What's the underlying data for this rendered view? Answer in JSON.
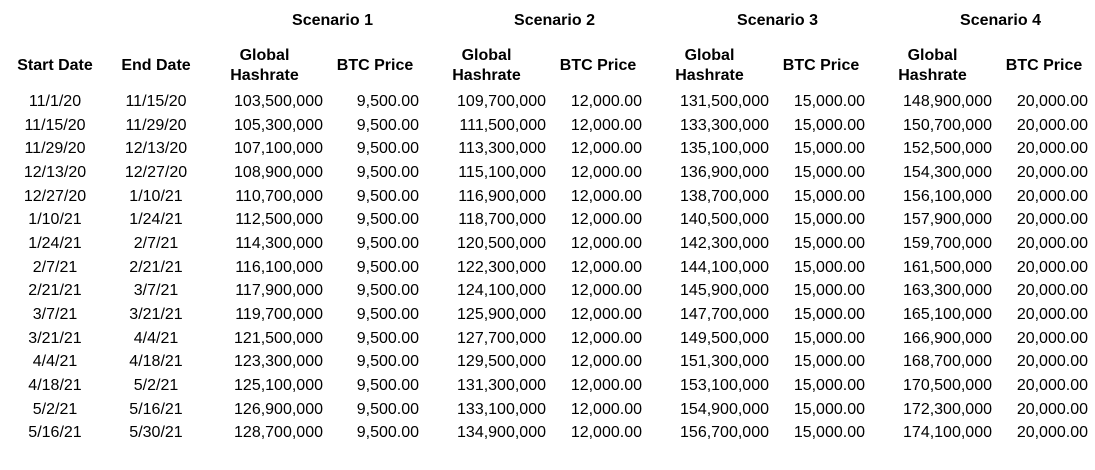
{
  "scenarios": [
    "Scenario 1",
    "Scenario 2",
    "Scenario 3",
    "Scenario 4"
  ],
  "columns": {
    "start_date": "Start Date",
    "end_date": "End Date",
    "hashrate_line1": "Global",
    "hashrate_line2": "Hashrate",
    "btc_price": "BTC Price"
  },
  "rows": [
    [
      "11/1/20",
      "11/15/20",
      "103,500,000",
      "9,500.00",
      "109,700,000",
      "12,000.00",
      "131,500,000",
      "15,000.00",
      "148,900,000",
      "20,000.00"
    ],
    [
      "11/15/20",
      "11/29/20",
      "105,300,000",
      "9,500.00",
      "111,500,000",
      "12,000.00",
      "133,300,000",
      "15,000.00",
      "150,700,000",
      "20,000.00"
    ],
    [
      "11/29/20",
      "12/13/20",
      "107,100,000",
      "9,500.00",
      "113,300,000",
      "12,000.00",
      "135,100,000",
      "15,000.00",
      "152,500,000",
      "20,000.00"
    ],
    [
      "12/13/20",
      "12/27/20",
      "108,900,000",
      "9,500.00",
      "115,100,000",
      "12,000.00",
      "136,900,000",
      "15,000.00",
      "154,300,000",
      "20,000.00"
    ],
    [
      "12/27/20",
      "1/10/21",
      "110,700,000",
      "9,500.00",
      "116,900,000",
      "12,000.00",
      "138,700,000",
      "15,000.00",
      "156,100,000",
      "20,000.00"
    ],
    [
      "1/10/21",
      "1/24/21",
      "112,500,000",
      "9,500.00",
      "118,700,000",
      "12,000.00",
      "140,500,000",
      "15,000.00",
      "157,900,000",
      "20,000.00"
    ],
    [
      "1/24/21",
      "2/7/21",
      "114,300,000",
      "9,500.00",
      "120,500,000",
      "12,000.00",
      "142,300,000",
      "15,000.00",
      "159,700,000",
      "20,000.00"
    ],
    [
      "2/7/21",
      "2/21/21",
      "116,100,000",
      "9,500.00",
      "122,300,000",
      "12,000.00",
      "144,100,000",
      "15,000.00",
      "161,500,000",
      "20,000.00"
    ],
    [
      "2/21/21",
      "3/7/21",
      "117,900,000",
      "9,500.00",
      "124,100,000",
      "12,000.00",
      "145,900,000",
      "15,000.00",
      "163,300,000",
      "20,000.00"
    ],
    [
      "3/7/21",
      "3/21/21",
      "119,700,000",
      "9,500.00",
      "125,900,000",
      "12,000.00",
      "147,700,000",
      "15,000.00",
      "165,100,000",
      "20,000.00"
    ],
    [
      "3/21/21",
      "4/4/21",
      "121,500,000",
      "9,500.00",
      "127,700,000",
      "12,000.00",
      "149,500,000",
      "15,000.00",
      "166,900,000",
      "20,000.00"
    ],
    [
      "4/4/21",
      "4/18/21",
      "123,300,000",
      "9,500.00",
      "129,500,000",
      "12,000.00",
      "151,300,000",
      "15,000.00",
      "168,700,000",
      "20,000.00"
    ],
    [
      "4/18/21",
      "5/2/21",
      "125,100,000",
      "9,500.00",
      "131,300,000",
      "12,000.00",
      "153,100,000",
      "15,000.00",
      "170,500,000",
      "20,000.00"
    ],
    [
      "5/2/21",
      "5/16/21",
      "126,900,000",
      "9,500.00",
      "133,100,000",
      "12,000.00",
      "154,900,000",
      "15,000.00",
      "172,300,000",
      "20,000.00"
    ],
    [
      "5/16/21",
      "5/30/21",
      "128,700,000",
      "9,500.00",
      "134,900,000",
      "12,000.00",
      "156,700,000",
      "15,000.00",
      "174,100,000",
      "20,000.00"
    ]
  ]
}
